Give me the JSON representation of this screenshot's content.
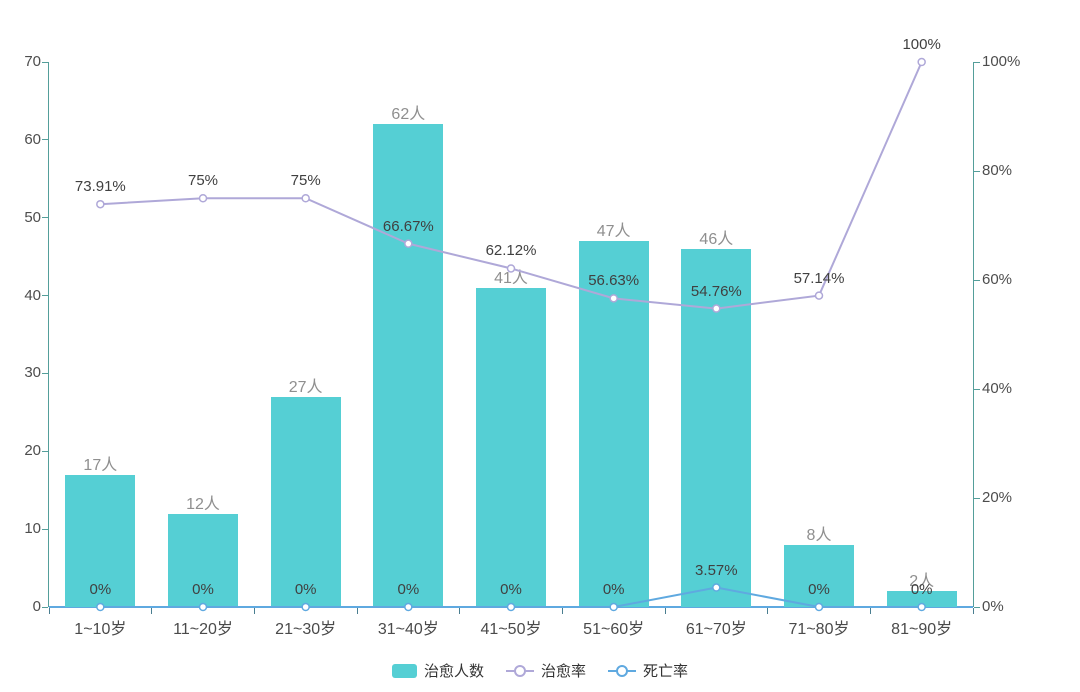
{
  "chart_data": {
    "type": "bar",
    "subtype": "bar-line-combo",
    "title": "",
    "categories": [
      "1~10岁",
      "11~20岁",
      "21~30岁",
      "31~40岁",
      "41~50岁",
      "51~60岁",
      "61~70岁",
      "71~80岁",
      "81~90岁"
    ],
    "series": [
      {
        "name": "治愈人数",
        "type": "bar",
        "axis": "left",
        "color": "#55CFD4",
        "values": [
          17,
          12,
          27,
          62,
          41,
          47,
          46,
          8,
          2
        ],
        "labels": [
          "17人",
          "12人",
          "27人",
          "62人",
          "41人",
          "47人",
          "46人",
          "8人",
          "2人"
        ]
      },
      {
        "name": "治愈率",
        "type": "line",
        "axis": "right",
        "color": "#AFA8D8",
        "values": [
          73.91,
          75,
          75,
          66.67,
          62.12,
          56.63,
          54.76,
          57.14,
          100
        ],
        "labels": [
          "73.91%",
          "75%",
          "75%",
          "66.67%",
          "62.12%",
          "56.63%",
          "54.76%",
          "57.14%",
          "100%"
        ]
      },
      {
        "name": "死亡率",
        "type": "line",
        "axis": "right",
        "color": "#5FA9E0",
        "values": [
          0,
          0,
          0,
          0,
          0,
          0,
          3.57,
          0,
          0
        ],
        "labels": [
          "0%",
          "0%",
          "0%",
          "0%",
          "0%",
          "0%",
          "3.57%",
          "0%",
          "0%"
        ]
      }
    ],
    "left_axis": {
      "min": 0,
      "max": 70,
      "ticks": [
        "0",
        "10",
        "20",
        "30",
        "40",
        "50",
        "60",
        "70"
      ]
    },
    "right_axis": {
      "min": 0,
      "max": 100,
      "ticks": [
        "0%",
        "20%",
        "40%",
        "60%",
        "80%",
        "100%"
      ]
    },
    "xlabel": "",
    "ylabel": "",
    "grid": false,
    "legend": {
      "position": "bottom",
      "items": [
        {
          "label": "治愈人数",
          "marker": "bar-swatch"
        },
        {
          "label": "治愈率",
          "marker": "line-circle"
        },
        {
          "label": "死亡率",
          "marker": "line-circle"
        }
      ]
    }
  }
}
